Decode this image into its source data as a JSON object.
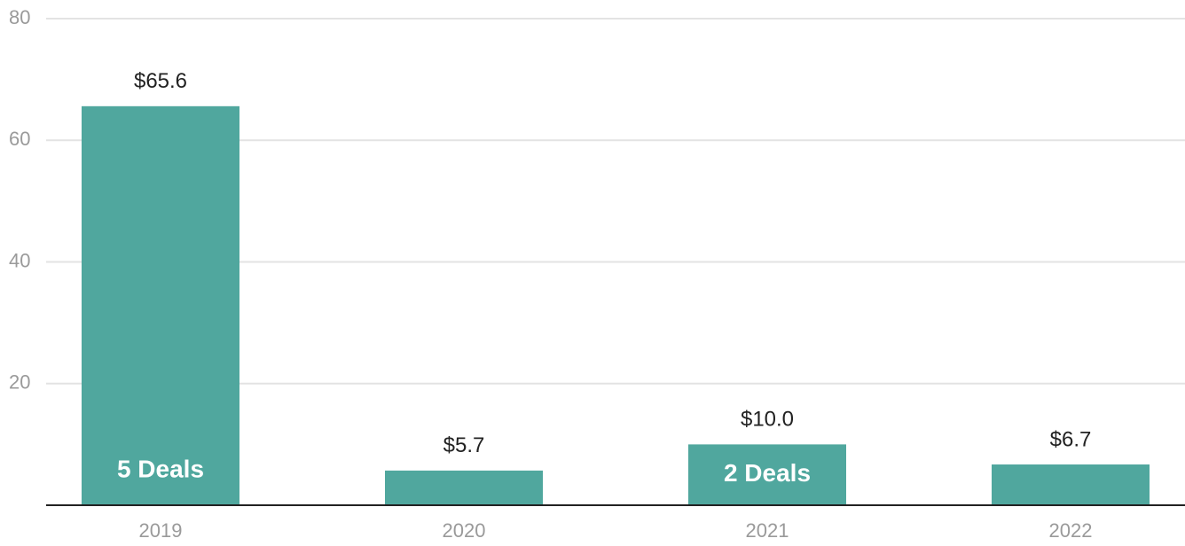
{
  "chart_data": {
    "type": "bar",
    "categories": [
      "2019",
      "2020",
      "2021",
      "2022"
    ],
    "values": [
      65.6,
      5.7,
      10.0,
      6.7
    ],
    "value_labels": [
      "$65.6",
      "$5.7",
      "$10.0",
      "$6.7"
    ],
    "color": "#50a79e",
    "ylim": [
      0,
      80
    ],
    "yticks": [
      20,
      40,
      60,
      80
    ],
    "grid": true,
    "annotations": [
      {
        "category": "2019",
        "text": "5 Deals"
      },
      {
        "category": "2021",
        "text": "2 Deals"
      }
    ]
  }
}
